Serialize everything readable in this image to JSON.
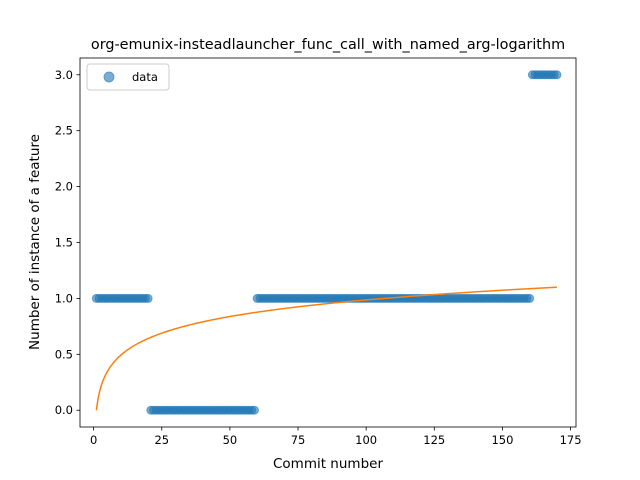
{
  "chart_data": {
    "type": "scatter",
    "title": "org-emunix-insteadlauncher_func_call_with_named_arg-logarithm",
    "xlabel": "Commit number",
    "ylabel": "Number of instance of a feature",
    "xlim": [
      -5,
      177
    ],
    "ylim": [
      -0.15,
      3.15
    ],
    "xticks": [
      0,
      25,
      50,
      75,
      100,
      125,
      150,
      175
    ],
    "xtick_labels": [
      "0",
      "25",
      "50",
      "75",
      "100",
      "125",
      "150",
      "175"
    ],
    "yticks": [
      0.0,
      0.5,
      1.0,
      1.5,
      2.0,
      2.5,
      3.0
    ],
    "ytick_labels": [
      "0.0",
      "0.5",
      "1.0",
      "1.5",
      "2.0",
      "2.5",
      "3.0"
    ],
    "legend": {
      "position": "upper-left",
      "entries": [
        "data"
      ]
    },
    "colors": {
      "data": "#1f77b4",
      "fit": "#ff7f0e"
    },
    "series": [
      {
        "name": "data",
        "kind": "scatter",
        "segments": [
          {
            "x_from": 1,
            "x_to": 20,
            "y": 1
          },
          {
            "x_from": 21,
            "x_to": 59,
            "y": 0
          },
          {
            "x_from": 60,
            "x_to": 160,
            "y": 1
          },
          {
            "x_from": 161,
            "x_to": 170,
            "y": 3
          }
        ]
      },
      {
        "name": "fit",
        "kind": "line",
        "model": "logarithm",
        "x_range": [
          1,
          170
        ],
        "points": [
          [
            1,
            0.0
          ],
          [
            2,
            0.15
          ],
          [
            5,
            0.35
          ],
          [
            10,
            0.5
          ],
          [
            20,
            0.65
          ],
          [
            50,
            0.85
          ],
          [
            100,
            1.0
          ],
          [
            150,
            1.08
          ],
          [
            170,
            1.1
          ]
        ]
      }
    ]
  }
}
